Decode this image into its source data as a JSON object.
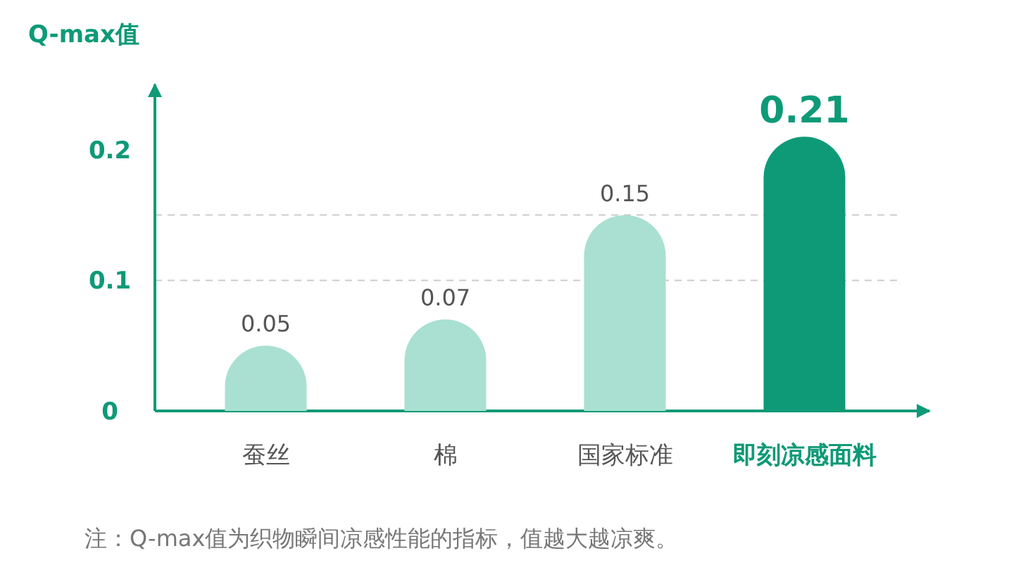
{
  "chart_data": {
    "type": "bar",
    "title": "Q-max值",
    "categories": [
      "蚕丝",
      "棉",
      "国家标准",
      "即刻凉感面料"
    ],
    "values": [
      0.05,
      0.07,
      0.15,
      0.21
    ],
    "colors": [
      "#a9e0d1",
      "#a9e0d1",
      "#a9e0d1",
      "#0e9a77"
    ],
    "ylim": [
      0,
      0.25
    ],
    "yticks": [
      0,
      0.1,
      0.2
    ],
    "ref_lines": [
      {
        "axis": "y",
        "value": 0.1,
        "color": "#cccccc",
        "line_style": "dashed"
      },
      {
        "axis": "y",
        "value": 0.15,
        "color": "#cccccc",
        "line_style": "dashed"
      }
    ],
    "data_labels": true,
    "annotations": [
      "注：Q-max值为织物瞬间凉感性能的指标，值越大越凉爽。"
    ]
  }
}
